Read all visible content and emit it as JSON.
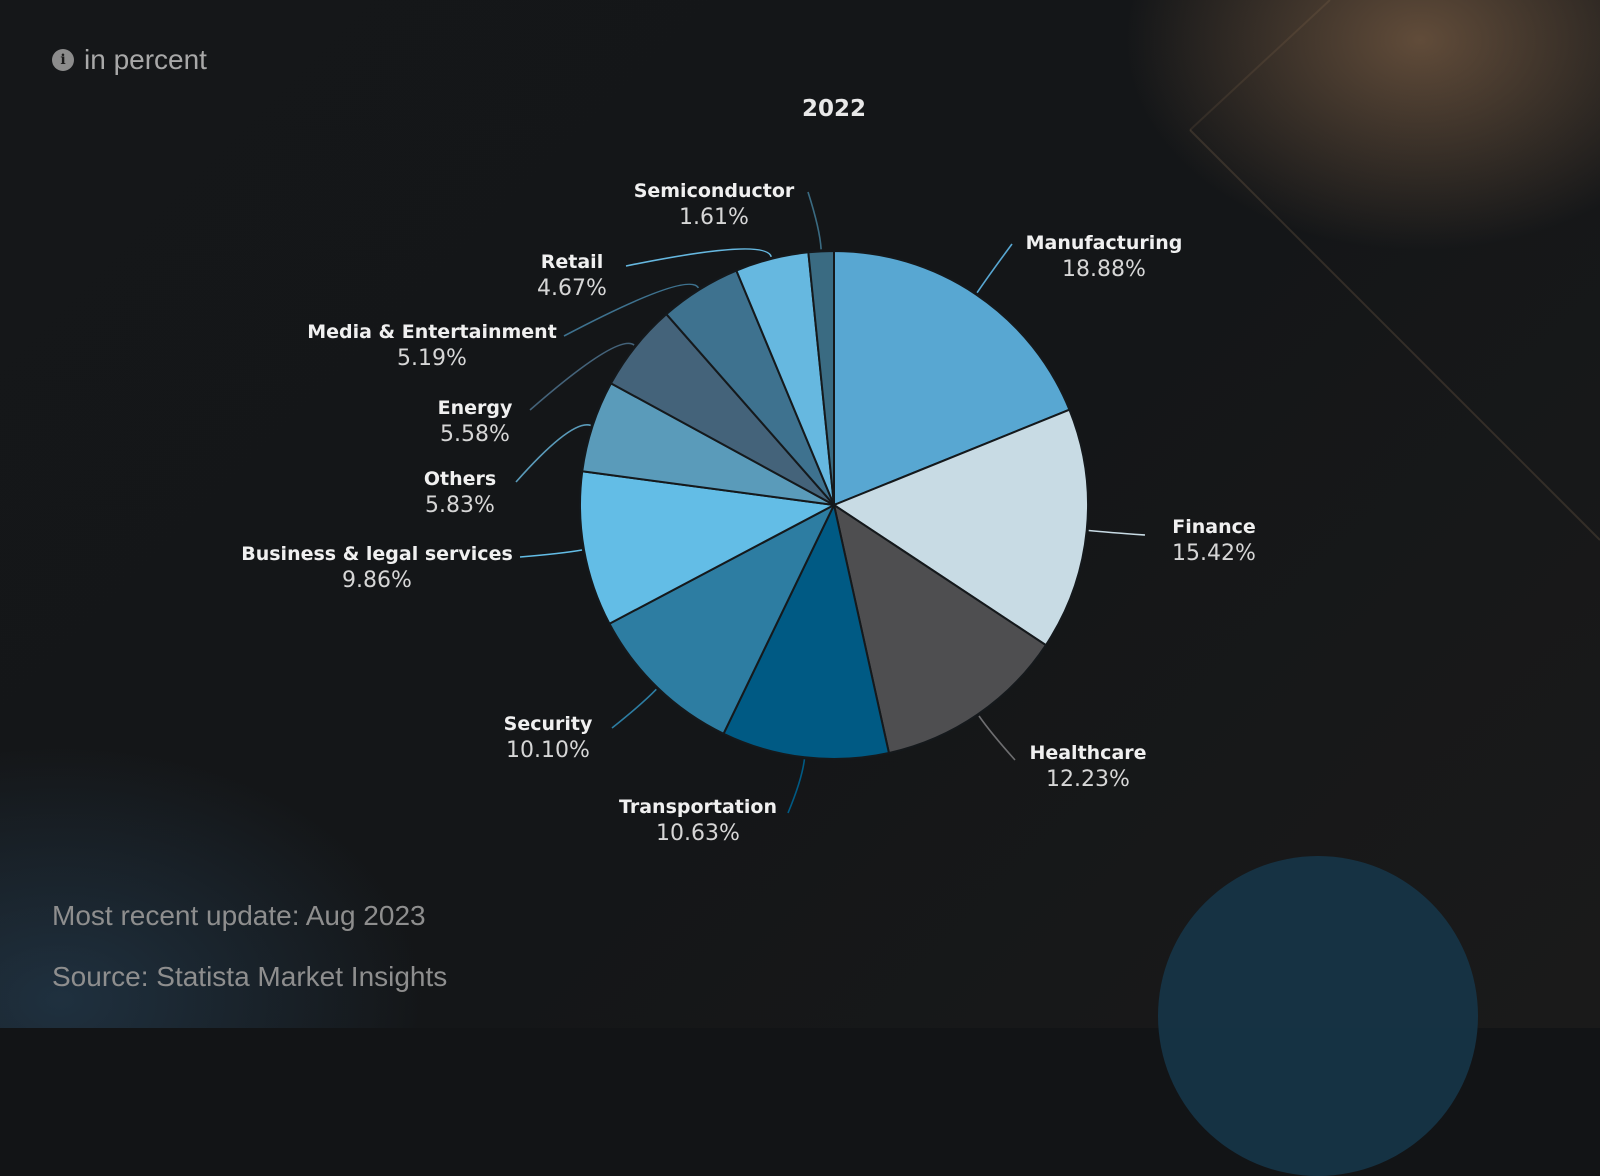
{
  "header": {
    "unit_label": "in percent",
    "info_icon": "info-icon"
  },
  "footer": {
    "update": "Most recent update: Aug 2023",
    "source": "Source: Statista Market Insights"
  },
  "chart_data": {
    "type": "pie",
    "title": "2022",
    "categories": [
      "Manufacturing",
      "Finance",
      "Healthcare",
      "Transportation",
      "Security",
      "Business & legal services",
      "Others",
      "Energy",
      "Media & Entertainment",
      "Retail",
      "Semiconductor"
    ],
    "values": [
      18.88,
      15.42,
      12.23,
      10.63,
      10.1,
      9.86,
      5.83,
      5.58,
      5.19,
      4.67,
      1.61
    ],
    "value_labels": [
      "18.88%",
      "15.42%",
      "12.23%",
      "10.63%",
      "10.10%",
      "9.86%",
      "5.83%",
      "5.58%",
      "5.19%",
      "4.67%",
      "1.61%"
    ],
    "colors": [
      "#58a7d2",
      "#c8dbe4",
      "#4e4e50",
      "#005a84",
      "#2d7da2",
      "#63bde6",
      "#5a9bba",
      "#44637a",
      "#3e728f",
      "#66b8e0",
      "#3a6b82"
    ],
    "start_angle_deg": 0,
    "direction": "clockwise",
    "legend": "none"
  }
}
